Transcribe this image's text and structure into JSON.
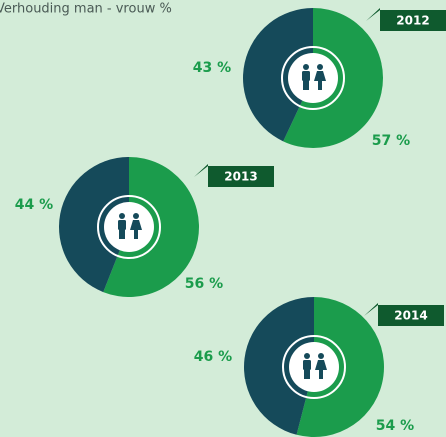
{
  "title": "Verhouding man - vrouw %",
  "chart_data": [
    {
      "type": "donut",
      "title": "2012",
      "values": [
        57,
        43
      ],
      "value_labels": [
        "57 %",
        "43 %"
      ],
      "colors": [
        "#1b9c4c",
        "#154a5a"
      ]
    },
    {
      "type": "donut",
      "title": "2013",
      "values": [
        56,
        44
      ],
      "value_labels": [
        "56 %",
        "44 %"
      ],
      "colors": [
        "#1b9c4c",
        "#154a5a"
      ]
    },
    {
      "type": "donut",
      "title": "2014",
      "values": [
        54,
        46
      ],
      "value_labels": [
        "54 %",
        "46 %"
      ],
      "colors": [
        "#1b9c4c",
        "#154a5a"
      ]
    }
  ]
}
